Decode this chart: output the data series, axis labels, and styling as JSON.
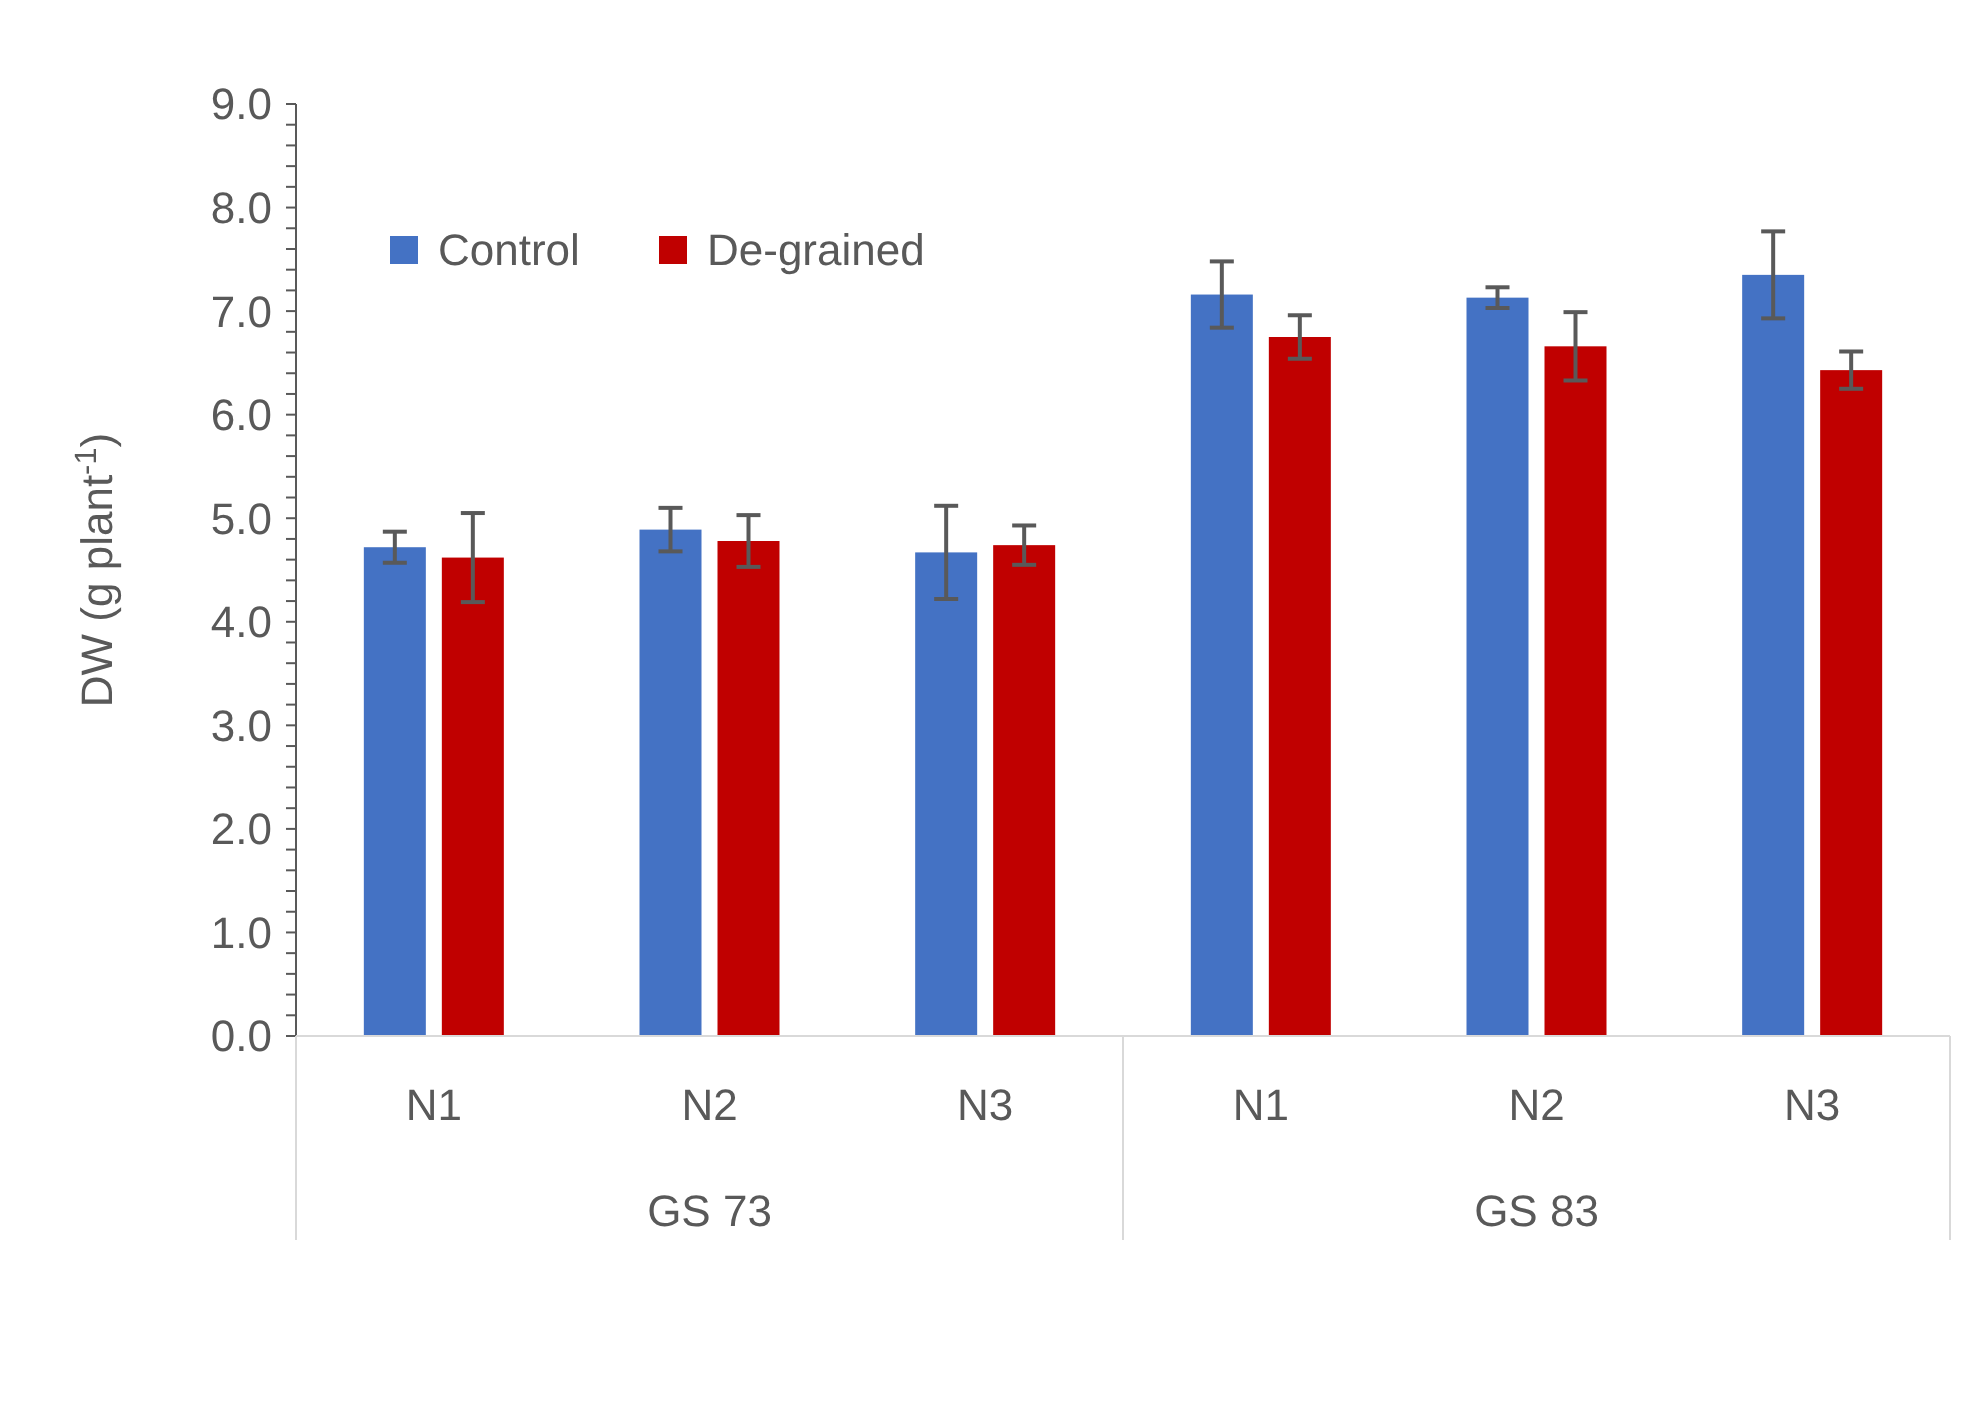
{
  "chart_data": {
    "type": "bar",
    "ylabel": "DW (g plant$^{-1}$)",
    "categories": [
      "N1",
      "N2",
      "N3",
      "N1",
      "N2",
      "N3"
    ],
    "annotations": [
      "GS 73",
      "GS 83"
    ],
    "series": [
      {
        "name": "Control",
        "color": "#4472c4",
        "values": [
          4.72,
          4.89,
          4.67,
          7.16,
          7.13,
          7.35
        ],
        "errors": [
          0.15,
          0.21,
          0.45,
          0.32,
          0.1,
          0.42
        ]
      },
      {
        "name": "De-grained",
        "color": "#c00000",
        "values": [
          4.62,
          4.78,
          4.74,
          6.75,
          6.66,
          6.43
        ],
        "errors": [
          0.43,
          0.25,
          0.19,
          0.21,
          0.33,
          0.18
        ]
      }
    ],
    "ylim": [
      0,
      9
    ],
    "yticks": [
      {
        "value": 0,
        "label": "0.0"
      },
      {
        "value": 0.2,
        "label": null
      },
      {
        "value": 0.4,
        "label": null
      },
      {
        "value": 0.6,
        "label": null
      },
      {
        "value": 0.8,
        "label": null
      },
      {
        "value": 1,
        "label": "1.0"
      },
      {
        "value": 1.2,
        "label": null
      },
      {
        "value": 1.4,
        "label": null
      },
      {
        "value": 1.6,
        "label": null
      },
      {
        "value": 1.8,
        "label": null
      },
      {
        "value": 2,
        "label": "2.0"
      },
      {
        "value": 2.2,
        "label": null
      },
      {
        "value": 2.4,
        "label": null
      },
      {
        "value": 2.6,
        "label": null
      },
      {
        "value": 2.8,
        "label": null
      },
      {
        "value": 3,
        "label": "3.0"
      },
      {
        "value": 3.2,
        "label": null
      },
      {
        "value": 3.4,
        "label": null
      },
      {
        "value": 3.6,
        "label": null
      },
      {
        "value": 3.8,
        "label": null
      },
      {
        "value": 4,
        "label": "4.0"
      },
      {
        "value": 4.2,
        "label": null
      },
      {
        "value": 4.4,
        "label": null
      },
      {
        "value": 4.6,
        "label": null
      },
      {
        "value": 4.8,
        "label": null
      },
      {
        "value": 5,
        "label": "5.0"
      },
      {
        "value": 5.2,
        "label": null
      },
      {
        "value": 5.4,
        "label": null
      },
      {
        "value": 5.6,
        "label": null
      },
      {
        "value": 5.8,
        "label": null
      },
      {
        "value": 6,
        "label": "6.0"
      },
      {
        "value": 6.2,
        "label": null
      },
      {
        "value": 6.4,
        "label": null
      },
      {
        "value": 6.6,
        "label": null
      },
      {
        "value": 6.8,
        "label": null
      },
      {
        "value": 7,
        "label": "7.0"
      },
      {
        "value": 7.2,
        "label": null
      },
      {
        "value": 7.4,
        "label": null
      },
      {
        "value": 7.6,
        "label": null
      },
      {
        "value": 7.8,
        "label": null
      },
      {
        "value": 8,
        "label": "8.0"
      },
      {
        "value": 8.2,
        "label": null
      },
      {
        "value": 8.4,
        "label": null
      },
      {
        "value": 8.6,
        "label": null
      },
      {
        "value": 8.8,
        "label": null
      },
      {
        "value": 9,
        "label": "9.0"
      }
    ],
    "grid": false,
    "legend": "top left"
  }
}
